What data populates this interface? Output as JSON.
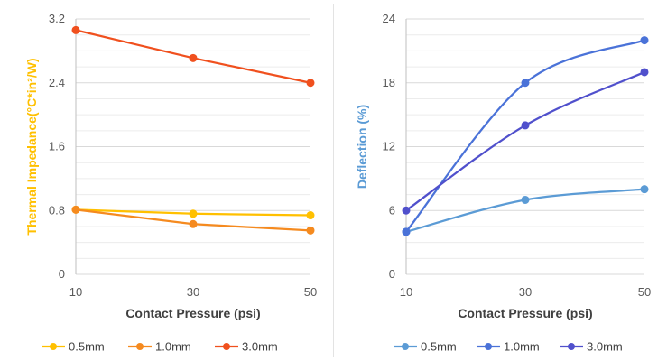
{
  "chart_data": [
    {
      "type": "line",
      "xlabel": "Contact Pressure (psi)",
      "ylabel": "Thermal Impedance(°C*in²/W)",
      "ylabel_color": "#FFC000",
      "x": [
        10,
        30,
        50
      ],
      "x_tick_labels": [
        "10",
        "30",
        "50"
      ],
      "ylim": [
        0,
        3.2
      ],
      "y_ticks": [
        0,
        0.8,
        1.6,
        2.4,
        3.2
      ],
      "y_tick_labels": [
        "0",
        "0.8",
        "1.6",
        "2.4",
        "3.2"
      ],
      "grid": true,
      "smooth": false,
      "legend": "bottom",
      "series": [
        {
          "name": "0.5mm",
          "values": [
            0.81,
            0.76,
            0.74
          ],
          "color": "#FFC000"
        },
        {
          "name": "1.0mm",
          "values": [
            0.81,
            0.63,
            0.55
          ],
          "color": "#F58A1F"
        },
        {
          "name": "3.0mm",
          "values": [
            3.06,
            2.71,
            2.4
          ],
          "color": "#F0501E"
        }
      ]
    },
    {
      "type": "line",
      "xlabel": "Contact Pressure (psi)",
      "ylabel": "Deflection (%)",
      "ylabel_color": "#5B9BD5",
      "x": [
        10,
        30,
        50
      ],
      "x_tick_labels": [
        "10",
        "30",
        "50"
      ],
      "ylim": [
        0,
        24
      ],
      "y_ticks": [
        0,
        6,
        12,
        18,
        24
      ],
      "y_tick_labels": [
        "0",
        "6",
        "12",
        "18",
        "24"
      ],
      "grid": true,
      "smooth": true,
      "legend": "bottom",
      "series": [
        {
          "name": "0.5mm",
          "values": [
            4,
            7,
            8
          ],
          "color": "#5B9BD5"
        },
        {
          "name": "1.0mm",
          "values": [
            4,
            18,
            22
          ],
          "color": "#4A72D8"
        },
        {
          "name": "3.0mm",
          "values": [
            6,
            14,
            19
          ],
          "color": "#5050CC"
        }
      ]
    }
  ]
}
